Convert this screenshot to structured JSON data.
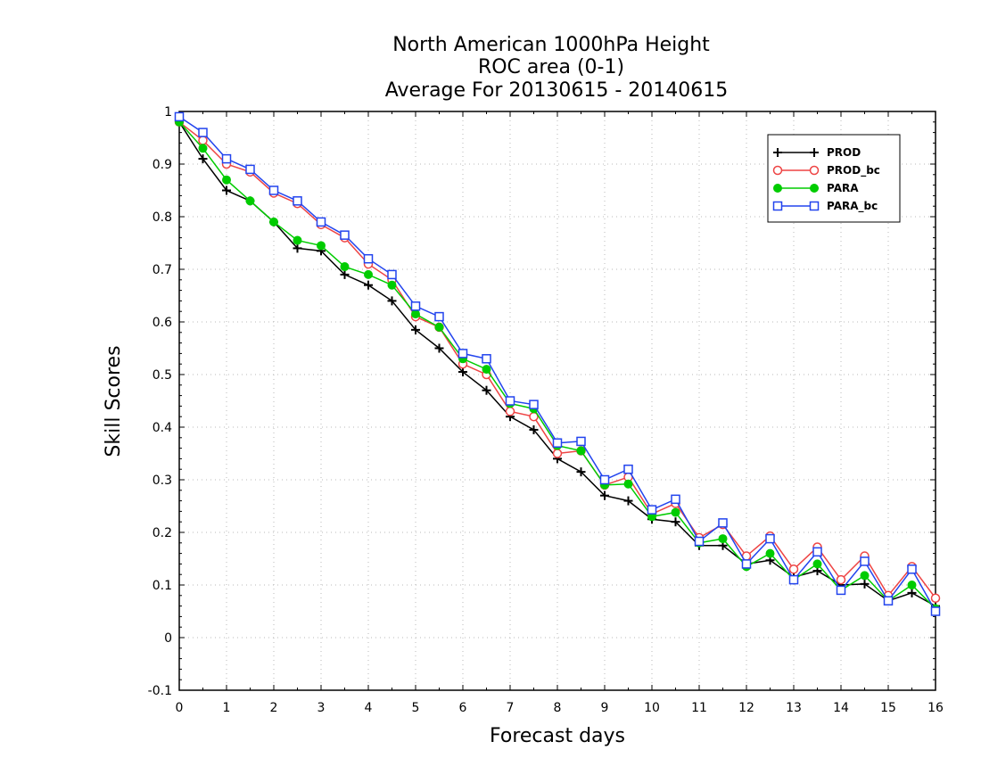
{
  "chart_data": {
    "type": "line",
    "title": [
      "North American 1000hPa Height",
      "ROC area (0-1)",
      "Average For 20130615 - 20140615"
    ],
    "xlabel": "Forecast days",
    "ylabel": "Skill Scores",
    "xlim": [
      0,
      16
    ],
    "ylim": [
      -0.1,
      1
    ],
    "xticks": [
      0,
      1,
      2,
      3,
      4,
      5,
      6,
      7,
      8,
      9,
      10,
      11,
      12,
      13,
      14,
      15,
      16
    ],
    "yticks": [
      -0.1,
      0,
      0.1,
      0.2,
      0.3,
      0.4,
      0.5,
      0.6,
      0.7,
      0.8,
      0.9,
      1
    ],
    "yticklabels": [
      "-0.1",
      "0",
      "0.1",
      "0.2",
      "0.3",
      "0.4",
      "0.5",
      "0.6",
      "0.7",
      "0.8",
      "0.9",
      "1"
    ],
    "grid": true,
    "legend_position": "top-right",
    "x": [
      0,
      0.5,
      1,
      1.5,
      2,
      2.5,
      3,
      3.5,
      4,
      4.5,
      5,
      5.5,
      6,
      6.5,
      7,
      7.5,
      8,
      8.5,
      9,
      9.5,
      10,
      10.5,
      11,
      11.5,
      12,
      12.5,
      13,
      13.5,
      14,
      14.5,
      15,
      15.5,
      16
    ],
    "series": [
      {
        "name": "PROD",
        "color": "#000000",
        "marker": "plus",
        "values": [
          0.98,
          0.91,
          0.85,
          0.83,
          0.79,
          0.74,
          0.735,
          0.69,
          0.67,
          0.64,
          0.585,
          0.55,
          0.505,
          0.47,
          0.42,
          0.395,
          0.34,
          0.315,
          0.27,
          0.26,
          0.225,
          0.22,
          0.175,
          0.175,
          0.14,
          0.147,
          0.115,
          0.127,
          0.1,
          0.102,
          0.07,
          0.085,
          0.06
        ]
      },
      {
        "name": "PROD_bc",
        "color": "#ee4444",
        "marker": "open-circle",
        "values": [
          0.98,
          0.945,
          0.9,
          0.885,
          0.845,
          0.825,
          0.785,
          0.76,
          0.71,
          0.68,
          0.61,
          0.59,
          0.52,
          0.5,
          0.43,
          0.42,
          0.35,
          0.355,
          0.29,
          0.305,
          0.235,
          0.255,
          0.19,
          0.215,
          0.155,
          0.193,
          0.13,
          0.172,
          0.11,
          0.155,
          0.08,
          0.135,
          0.075
        ]
      },
      {
        "name": "PARA",
        "color": "#00cc00",
        "marker": "filled-circle",
        "values": [
          0.98,
          0.93,
          0.87,
          0.83,
          0.79,
          0.755,
          0.745,
          0.705,
          0.69,
          0.67,
          0.615,
          0.59,
          0.53,
          0.51,
          0.445,
          0.435,
          0.365,
          0.355,
          0.29,
          0.292,
          0.23,
          0.238,
          0.18,
          0.188,
          0.135,
          0.16,
          0.11,
          0.14,
          0.09,
          0.118,
          0.07,
          0.1,
          0.055
        ]
      },
      {
        "name": "PARA_bc",
        "color": "#2244ee",
        "marker": "open-square",
        "values": [
          0.99,
          0.96,
          0.91,
          0.89,
          0.85,
          0.83,
          0.79,
          0.765,
          0.72,
          0.69,
          0.63,
          0.61,
          0.54,
          0.53,
          0.45,
          0.443,
          0.37,
          0.373,
          0.3,
          0.32,
          0.243,
          0.263,
          0.183,
          0.218,
          0.14,
          0.188,
          0.11,
          0.163,
          0.09,
          0.145,
          0.07,
          0.13,
          0.05
        ]
      }
    ]
  }
}
